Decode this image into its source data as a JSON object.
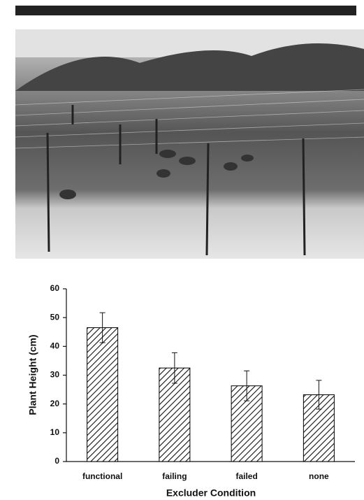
{
  "chart_data": {
    "type": "bar",
    "xlabel": "Excluder Condition",
    "ylabel": "Plant Height (cm)",
    "categories": [
      "functional",
      "failing",
      "failed",
      "none"
    ],
    "values": [
      46.5,
      32.5,
      26.3,
      23.2
    ],
    "errors": [
      5.2,
      5.3,
      5.2,
      5.0
    ],
    "color": "#000000",
    "ylim": [
      0,
      60
    ],
    "yticks": [
      0,
      10,
      20,
      30,
      40,
      50,
      60
    ],
    "grid": false
  }
}
